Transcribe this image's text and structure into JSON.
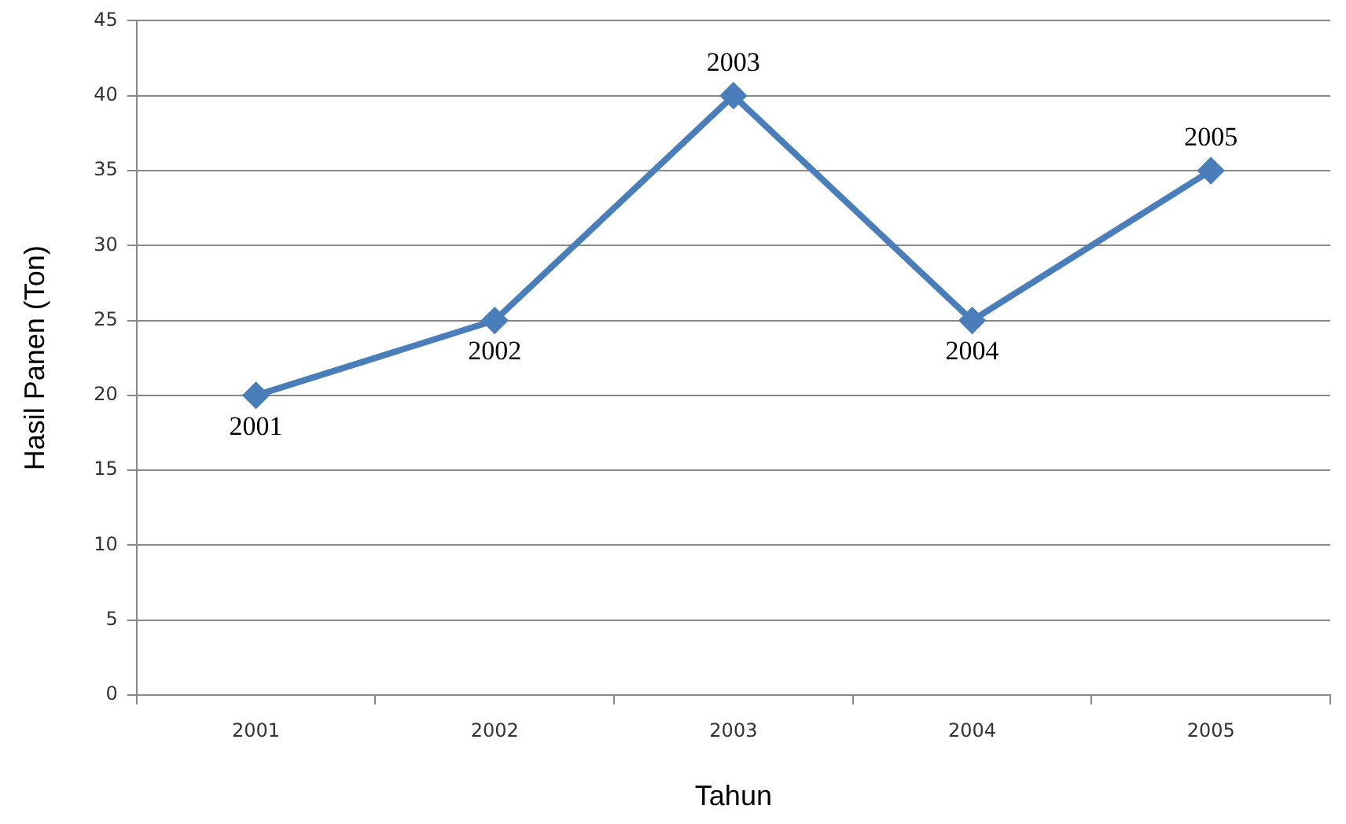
{
  "chart_data": {
    "type": "line",
    "xlabel": "Tahun",
    "ylabel": "Hasil Panen (Ton)",
    "categories": [
      "2001",
      "2002",
      "2003",
      "2004",
      "2005"
    ],
    "series": [
      {
        "color": "#4a7ebb",
        "values": [
          20,
          25,
          40,
          25,
          35
        ]
      }
    ],
    "ylim": [
      0,
      45
    ],
    "yticks": [
      0,
      5,
      10,
      15,
      20,
      25,
      30,
      35,
      40,
      45
    ],
    "grid": "y",
    "legend": false,
    "marker": "diamond",
    "line_style": "solid",
    "annotations": [
      {
        "text": "2001",
        "x": "2001",
        "y": 20
      },
      {
        "text": "2002",
        "x": "2002",
        "y": 25
      },
      {
        "text": "2003",
        "x": "2003",
        "y": 40
      },
      {
        "text": "2004",
        "x": "2004",
        "y": 25
      },
      {
        "text": "2005",
        "x": "2005",
        "y": 35
      }
    ]
  }
}
